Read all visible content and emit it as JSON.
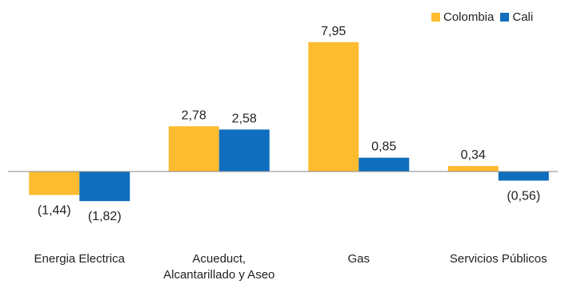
{
  "chart_data": {
    "type": "bar",
    "categories": [
      "Energia Electrica",
      "Acueduct, Alcantarillado y Aseo",
      "Gas",
      "Servicios Públicos"
    ],
    "category_lines": [
      [
        "Energia Electrica"
      ],
      [
        "Acueduct,",
        "Alcantarillado y Aseo"
      ],
      [
        "Gas"
      ],
      [
        "Servicios Públicos"
      ]
    ],
    "series": [
      {
        "name": "Colombia",
        "color": "#FDBB30",
        "values": [
          -1.44,
          2.78,
          7.95,
          0.34
        ],
        "labels": [
          "(1,44)",
          "2,78",
          "7,95",
          "0,34"
        ]
      },
      {
        "name": "Cali",
        "color": "#0F6EBE",
        "values": [
          -1.82,
          2.58,
          0.85,
          -0.56
        ],
        "labels": [
          "(1,82)",
          "2,58",
          "0,85",
          "(0,56)"
        ]
      }
    ],
    "ylim": [
      -2.2,
      8.5
    ],
    "title": "",
    "xlabel": "",
    "ylabel": "",
    "legend_position": "top-right",
    "grid": false
  }
}
